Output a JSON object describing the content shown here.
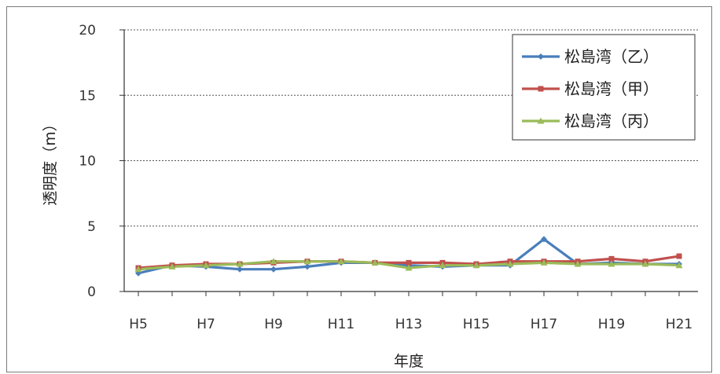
{
  "chart_data": {
    "type": "line",
    "xlabel": "年度",
    "ylabel": "透明度（m）",
    "ylim": [
      0,
      20
    ],
    "yticks": [
      "0",
      "5",
      "10",
      "15",
      "20"
    ],
    "grid": "horizontal dotted",
    "legend_position": "top-right",
    "x": [
      "H5",
      "H6",
      "H7",
      "H8",
      "H9",
      "H10",
      "H11",
      "H12",
      "H13",
      "H14",
      "H15",
      "H16",
      "H17",
      "H18",
      "H19",
      "H20",
      "H21"
    ],
    "xtick_labels": [
      "H5",
      "H7",
      "H9",
      "H11",
      "H13",
      "H15",
      "H17",
      "H19",
      "H21"
    ],
    "series": [
      {
        "name": "松島湾（乙）",
        "color": "#4a7ebb",
        "marker": "diamond",
        "values": [
          1.4,
          2.0,
          1.9,
          1.7,
          1.7,
          1.9,
          2.2,
          2.2,
          2.0,
          1.9,
          2.0,
          2.0,
          4.0,
          2.1,
          2.2,
          2.1,
          2.1
        ]
      },
      {
        "name": "松島湾（甲）",
        "color": "#c0504d",
        "marker": "square",
        "values": [
          1.8,
          2.0,
          2.1,
          2.1,
          2.2,
          2.3,
          2.3,
          2.2,
          2.2,
          2.2,
          2.1,
          2.3,
          2.3,
          2.3,
          2.5,
          2.3,
          2.7
        ]
      },
      {
        "name": "松島湾（丙）",
        "color": "#9bbb59",
        "marker": "triangle",
        "values": [
          1.7,
          1.9,
          2.0,
          2.1,
          2.3,
          2.3,
          2.3,
          2.2,
          1.8,
          2.0,
          2.0,
          2.1,
          2.2,
          2.1,
          2.1,
          2.1,
          2.0
        ]
      }
    ]
  }
}
